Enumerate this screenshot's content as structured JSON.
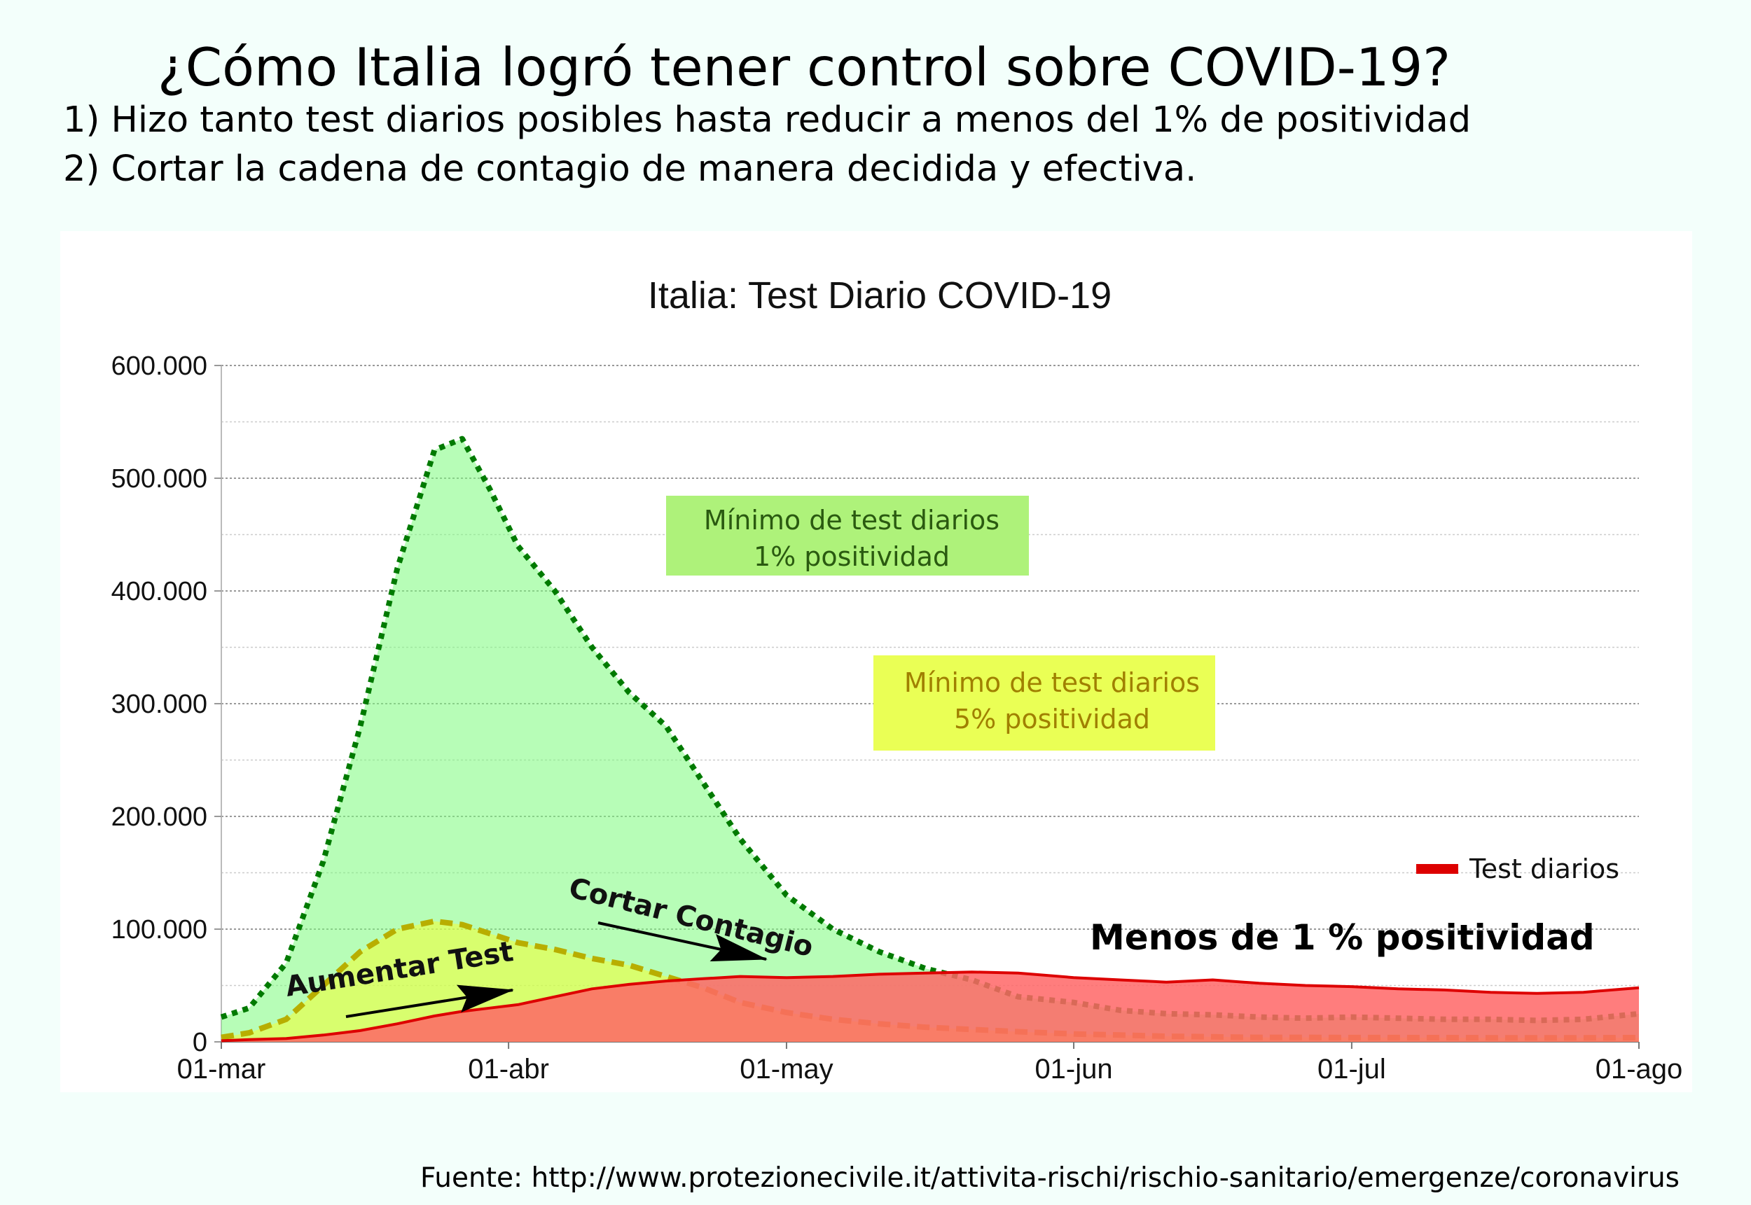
{
  "headline": "¿Cómo Italia logró tener control sobre COVID-19?",
  "subtitle_1": "1) Hizo tanto test diarios posibles hasta reducir a menos del 1% de positividad",
  "subtitle_2": "2) Cortar la cadena de contagio de manera decidida y efectiva.",
  "source": "Fuente: http://www.protezionecivile.it/attivita-rischi/rischio-sanitario/emergenze/coronavirus",
  "colors": {
    "background": "#f3fffb",
    "tests_line": "#dd0000",
    "tests_fill": "#ff6666",
    "min1_line": "#007a00",
    "min1_fill": "#7cfc7c",
    "min5_line": "#b8ae00",
    "min5_fill": "#f4ff33",
    "box1": "#aef27a",
    "box1_text": "#2a5a10",
    "box5": "#eaff55",
    "box5_text": "#a08000"
  },
  "chart_data": {
    "type": "area",
    "title": "Italia: Test Diario COVID-19",
    "xlabel": "",
    "ylabel": "",
    "x_ticks": [
      "01-mar",
      "01-abr",
      "01-may",
      "01-jun",
      "01-jul",
      "01-ago"
    ],
    "x_range": [
      "2020-03-01",
      "2020-08-01"
    ],
    "y_ticks": [
      "0",
      "100.000",
      "200.000",
      "300.000",
      "400.000",
      "500.000",
      "600.000"
    ],
    "ylim": [
      0,
      600000
    ],
    "grid": true,
    "legend_position": "right",
    "x": [
      "2020-03-01",
      "2020-03-04",
      "2020-03-08",
      "2020-03-12",
      "2020-03-16",
      "2020-03-20",
      "2020-03-24",
      "2020-03-27",
      "2020-03-30",
      "2020-04-02",
      "2020-04-06",
      "2020-04-10",
      "2020-04-14",
      "2020-04-18",
      "2020-04-22",
      "2020-04-26",
      "2020-05-01",
      "2020-05-06",
      "2020-05-11",
      "2020-05-16",
      "2020-05-21",
      "2020-05-26",
      "2020-06-01",
      "2020-06-06",
      "2020-06-11",
      "2020-06-16",
      "2020-06-21",
      "2020-06-26",
      "2020-07-01",
      "2020-07-06",
      "2020-07-11",
      "2020-07-16",
      "2020-07-21",
      "2020-07-26",
      "2020-08-01"
    ],
    "series": [
      {
        "name": "Test diarios",
        "style": "solid",
        "values": [
          1000,
          2000,
          3000,
          6000,
          10000,
          16000,
          23000,
          27000,
          30000,
          33000,
          40000,
          47000,
          51000,
          54000,
          56000,
          58000,
          57000,
          58000,
          60000,
          61000,
          62000,
          61000,
          57000,
          55000,
          53000,
          55000,
          52000,
          50000,
          49000,
          47000,
          46000,
          44000,
          43000,
          44000,
          48000
        ]
      },
      {
        "style": "dotted",
        "values": [
          22000,
          30000,
          70000,
          160000,
          280000,
          420000,
          525000,
          535000,
          490000,
          440000,
          400000,
          350000,
          310000,
          280000,
          230000,
          180000,
          130000,
          100000,
          80000,
          65000,
          55000,
          40000,
          35000,
          28000,
          25000,
          24000,
          22000,
          21000,
          22000,
          21000,
          20000,
          20000,
          19000,
          20000,
          25000
        ]
      },
      {
        "style": "dashed",
        "values": [
          4000,
          8000,
          20000,
          50000,
          80000,
          100000,
          107000,
          104000,
          96000,
          88000,
          82000,
          74000,
          68000,
          58000,
          48000,
          35000,
          26000,
          20000,
          16000,
          13000,
          11000,
          9000,
          7000,
          6000,
          5000,
          4500,
          4000,
          4000,
          3800,
          3800,
          3700,
          3600,
          3600,
          3600,
          3700
        ]
      }
    ],
    "annotations": {
      "box_1pct": [
        "Mínimo de test diarios",
        "1% positividad"
      ],
      "box_5pct": [
        "Mínimo de test diarios",
        "5% positividad"
      ],
      "arrow_1": "Aumentar Test",
      "arrow_2": "Cortar Contagio",
      "note": "Menos de 1 % positividad"
    }
  }
}
